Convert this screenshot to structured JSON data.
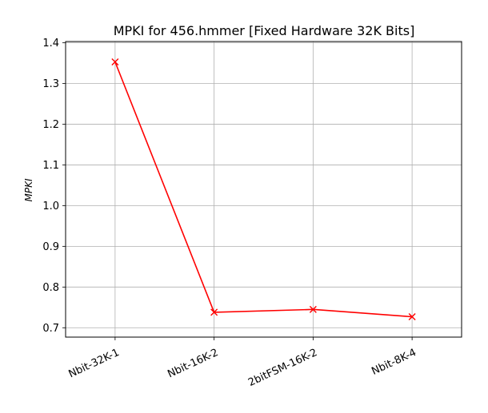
{
  "chart_data": {
    "type": "line",
    "title": "MPKI for 456.hmmer [Fixed Hardware 32K Bits]",
    "xlabel": "",
    "ylabel": "MPKI",
    "categories": [
      "Nbit-32K-1",
      "Nbit-16K-2",
      "2bitFSM-16K-2",
      "Nbit-8K-4"
    ],
    "series": [
      {
        "values": [
          1.353,
          0.738,
          0.745,
          0.727
        ],
        "color": "#ff0000",
        "marker": "x"
      }
    ],
    "ylim": [
      0.677,
      1.403
    ],
    "yticks": [
      "0.7",
      "0.8",
      "0.9",
      "1.0",
      "1.1",
      "1.2",
      "1.3",
      "1.4"
    ],
    "grid": true,
    "legend": "none",
    "xtick_rotation_deg": -25
  }
}
